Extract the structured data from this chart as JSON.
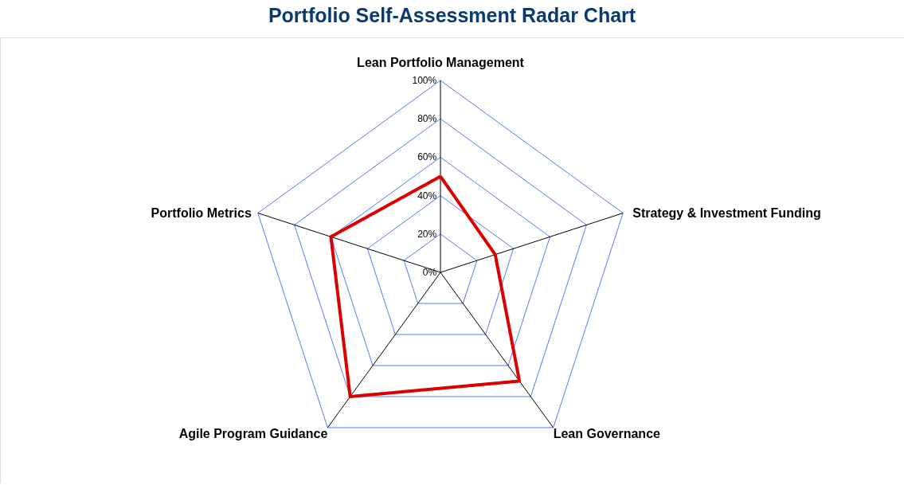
{
  "chart_data": {
    "type": "radar",
    "title": "Portfolio Self-Assessment Radar Chart",
    "categories": [
      "Lean Portfolio Management",
      "Strategy & Investment Funding",
      "Lean Governance",
      "Agile Program Guidance",
      "Portfolio Metrics"
    ],
    "series": [
      {
        "color": "#dd0000",
        "values": [
          50,
          30,
          70,
          80,
          60
        ]
      }
    ],
    "ylim": [
      0,
      100
    ],
    "yticks": [
      {
        "value": 0,
        "label": "0%"
      },
      {
        "value": 20,
        "label": "20%"
      },
      {
        "value": 40,
        "label": "40%"
      },
      {
        "value": 60,
        "label": "60%"
      },
      {
        "value": 80,
        "label": "80%"
      },
      {
        "value": 100,
        "label": "100%"
      }
    ],
    "grid": true,
    "line_style": "solid"
  }
}
